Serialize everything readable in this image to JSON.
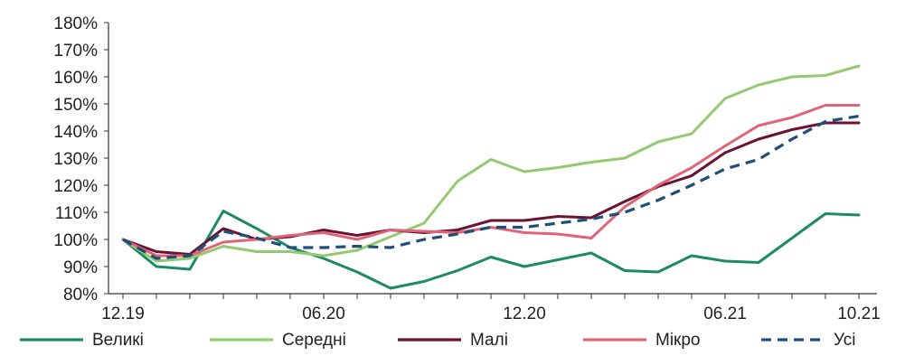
{
  "chart_data": {
    "type": "line",
    "title": "",
    "xlabel": "",
    "ylabel": "",
    "x": [
      "12.19",
      "01.20",
      "02.20",
      "03.20",
      "04.20",
      "05.20",
      "06.20",
      "07.20",
      "08.20",
      "09.20",
      "10.20",
      "11.20",
      "12.20",
      "01.21",
      "02.21",
      "03.21",
      "04.21",
      "05.21",
      "06.21",
      "07.21",
      "08.21",
      "09.21",
      "10.21"
    ],
    "x_tick_labels": [
      "12.19",
      "06.20",
      "12.20",
      "06.21",
      "10.21"
    ],
    "y_ticks": [
      80,
      90,
      100,
      110,
      120,
      130,
      140,
      150,
      160,
      170,
      180
    ],
    "y_tick_labels": [
      "80%",
      "90%",
      "100%",
      "110%",
      "120%",
      "130%",
      "140%",
      "150%",
      "160%",
      "170%",
      "180%"
    ],
    "ylim": [
      80,
      180
    ],
    "grid": false,
    "legend_position": "bottom",
    "series": [
      {
        "name": "Великі",
        "color": "#1e8a63",
        "dash": "solid",
        "values": [
          100,
          90,
          89,
          110.5,
          104,
          97,
          93,
          88,
          82,
          84.5,
          88.5,
          93.5,
          90,
          92.5,
          95,
          88.5,
          88,
          94,
          92,
          91.5,
          100.5,
          109.5,
          109
        ]
      },
      {
        "name": "Середні",
        "color": "#94c973",
        "dash": "solid",
        "values": [
          100,
          92,
          93,
          97.5,
          95.5,
          95.5,
          94,
          96,
          101,
          106,
          121.5,
          129.5,
          125,
          126.5,
          128.5,
          130,
          136,
          139,
          152,
          157,
          160,
          160.5,
          164
        ]
      },
      {
        "name": "Малі",
        "color": "#6b1232",
        "dash": "solid",
        "values": [
          100,
          95.5,
          94.5,
          104,
          100,
          101,
          103.5,
          101.5,
          103.5,
          102.5,
          103.5,
          107,
          107,
          108.5,
          108,
          114,
          119.5,
          123.5,
          132,
          137,
          140.5,
          143,
          143
        ]
      },
      {
        "name": "Мікро",
        "color": "#e06478",
        "dash": "solid",
        "values": [
          100,
          94,
          94,
          99,
          100,
          101.5,
          102.5,
          100,
          103.5,
          103,
          102.5,
          104.5,
          102.5,
          102,
          100.5,
          112,
          120,
          126.5,
          134.5,
          142,
          145,
          149.5,
          149.5
        ]
      },
      {
        "name": "Усі",
        "color": "#1f4e79",
        "dash": "dashed",
        "values": [
          100,
          93,
          94,
          103,
          100.5,
          97,
          97,
          97.5,
          97,
          100,
          102,
          104.5,
          104.5,
          106,
          107.5,
          110,
          114.5,
          120,
          126,
          129.5,
          137,
          143.5,
          145.5
        ]
      }
    ]
  }
}
